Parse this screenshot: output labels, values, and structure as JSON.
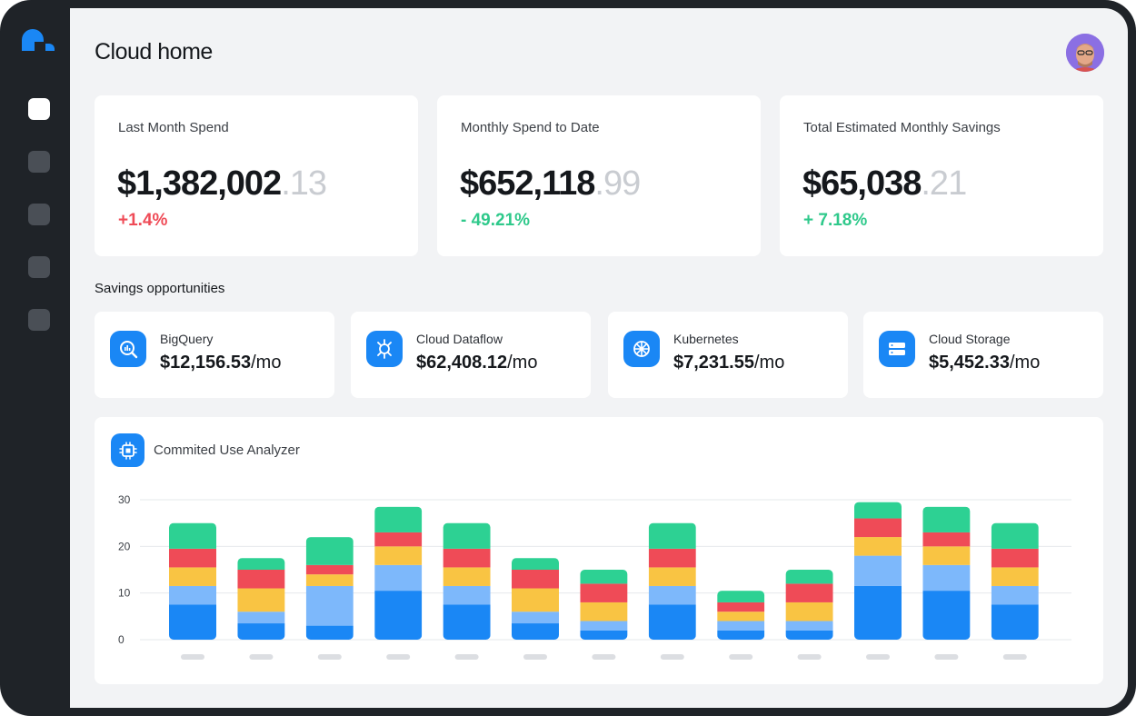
{
  "page": {
    "title": "Cloud home"
  },
  "user": {
    "avatar_alt": "User avatar"
  },
  "sidebar": {
    "items": [
      {
        "name": "nav-item-1",
        "active": true
      },
      {
        "name": "nav-item-2",
        "active": false
      },
      {
        "name": "nav-item-3",
        "active": false
      },
      {
        "name": "nav-item-4",
        "active": false
      },
      {
        "name": "nav-item-5",
        "active": false
      }
    ]
  },
  "stats": [
    {
      "label": "Last Month Spend",
      "whole": "$1,382,002",
      "cents": ".13",
      "change": "+1.4%",
      "trend": "negative"
    },
    {
      "label": "Monthly Spend to Date",
      "whole": "$652,118",
      "cents": ".99",
      "change": "- 49.21%",
      "trend": "positive"
    },
    {
      "label": "Total Estimated Monthly Savings",
      "whole": "$65,038",
      "cents": ".21",
      "change": "+ 7.18%",
      "trend": "positive"
    }
  ],
  "savings": {
    "title": "Savings opportunities",
    "items": [
      {
        "name": "BigQuery",
        "amount": "$12,156.53",
        "unit": "/mo",
        "icon": "bigquery-icon"
      },
      {
        "name": "Cloud Dataflow",
        "amount": "$62,408.12",
        "unit": "/mo",
        "icon": "dataflow-icon"
      },
      {
        "name": "Kubernetes",
        "amount": "$7,231.55",
        "unit": "/mo",
        "icon": "kubernetes-icon"
      },
      {
        "name": "Cloud Storage",
        "amount": "$5,452.33",
        "unit": "/mo",
        "icon": "storage-icon"
      }
    ]
  },
  "analyzer": {
    "title": "Commited Use Analyzer",
    "icon": "chip-icon"
  },
  "colors": {
    "accent": "#1a87f5",
    "series": [
      "#1a87f5",
      "#7db8fb",
      "#f9c443",
      "#ef4b57",
      "#2dd193"
    ]
  },
  "chart_data": {
    "type": "bar",
    "stacked": true,
    "ylim": [
      0,
      30
    ],
    "yticks": [
      0,
      10,
      20,
      30
    ],
    "grid": true,
    "x_tick_labels_visible": false,
    "categories": [
      "",
      "",
      "",
      "",
      "",
      "",
      "",
      "",
      "",
      "",
      "",
      "",
      ""
    ],
    "series": [
      {
        "values": [
          7.5,
          3.5,
          3,
          10.5,
          7.5,
          3.5,
          2,
          7.5,
          2,
          2,
          11.5,
          10.5,
          7.5
        ]
      },
      {
        "values": [
          4,
          2.5,
          8.5,
          5.5,
          4,
          2.5,
          2,
          4,
          2,
          2,
          6.5,
          5.5,
          4
        ]
      },
      {
        "values": [
          4,
          5,
          2.5,
          4,
          4,
          5,
          4,
          4,
          2,
          4,
          4,
          4,
          4
        ]
      },
      {
        "values": [
          4,
          4,
          2,
          3,
          4,
          4,
          4,
          4,
          2,
          4,
          4,
          3,
          4
        ]
      },
      {
        "values": [
          5.5,
          2.5,
          6,
          5.5,
          5.5,
          2.5,
          3,
          5.5,
          2.5,
          3,
          3.5,
          5.5,
          5.5
        ]
      }
    ]
  }
}
